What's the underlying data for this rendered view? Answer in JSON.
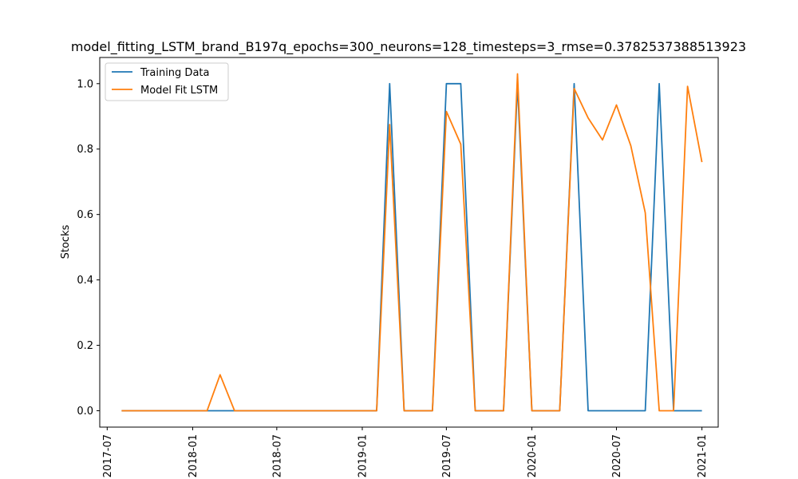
{
  "chart_data": {
    "type": "line",
    "title": "model_fitting_LSTM_brand_B197q_epochs=300_neurons=128_timesteps=3_rmse=0.3782537388513923",
    "xlabel": "",
    "ylabel": "Stocks",
    "ylim": [
      -0.05,
      1.08
    ],
    "xlim": [
      "2017-06-15",
      "2021-02-05"
    ],
    "x_ticks": [
      "2017-07",
      "2018-01",
      "2018-07",
      "2019-01",
      "2019-07",
      "2020-01",
      "2020-07",
      "2021-01"
    ],
    "y_ticks": [
      "0.0",
      "0.2",
      "0.4",
      "0.6",
      "0.8",
      "1.0"
    ],
    "grid": false,
    "legend_position": "top-left",
    "x": [
      "2017-08-01",
      "2017-09-01",
      "2017-10-01",
      "2017-11-01",
      "2017-12-01",
      "2018-01-01",
      "2018-02-01",
      "2018-03-01",
      "2018-04-01",
      "2018-05-01",
      "2018-06-01",
      "2018-07-01",
      "2018-08-01",
      "2018-09-01",
      "2018-10-01",
      "2018-11-01",
      "2018-12-01",
      "2019-01-01",
      "2019-02-01",
      "2019-03-01",
      "2019-04-01",
      "2019-05-01",
      "2019-06-01",
      "2019-07-01",
      "2019-08-01",
      "2019-09-01",
      "2019-10-01",
      "2019-11-01",
      "2019-12-01",
      "2020-01-01",
      "2020-02-01",
      "2020-03-01",
      "2020-04-01",
      "2020-05-01",
      "2020-06-01",
      "2020-07-01",
      "2020-08-01",
      "2020-09-01",
      "2020-10-01",
      "2020-11-01",
      "2020-12-01",
      "2021-01-01"
    ],
    "series": [
      {
        "name": "Training Data",
        "color": "#1f77b4",
        "values": [
          0,
          0,
          0,
          0,
          0,
          0,
          0,
          0,
          0,
          0,
          0,
          0,
          0,
          0,
          0,
          0,
          0,
          0,
          0,
          1,
          0,
          0,
          0,
          1,
          1,
          0,
          0,
          0,
          1,
          0,
          0,
          0,
          1,
          0,
          0,
          0,
          0,
          0,
          1,
          0,
          0,
          0
        ]
      },
      {
        "name": "Model Fit LSTM",
        "color": "#ff7f0e",
        "values": [
          0,
          0,
          0,
          0,
          0,
          0,
          0,
          0.11,
          0,
          0,
          0,
          0,
          0,
          0,
          0,
          0,
          0,
          0,
          0,
          0.875,
          0,
          0,
          0,
          0.915,
          0.815,
          0,
          0,
          0,
          1.03,
          0,
          0,
          0,
          0.985,
          0.895,
          0.828,
          0.935,
          0.81,
          0.605,
          0,
          0,
          0.992,
          0.76
        ]
      }
    ]
  }
}
